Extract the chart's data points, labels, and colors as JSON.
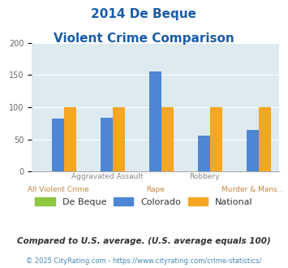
{
  "title_line1": "2014 De Beque",
  "title_line2": "Violent Crime Comparison",
  "categories_top": [
    "",
    "Aggravated Assault",
    "",
    "Robbery",
    ""
  ],
  "categories_bot": [
    "All Violent Crime",
    "",
    "Rape",
    "",
    "Murder & Mans..."
  ],
  "de_beque": [
    0,
    0,
    0,
    0,
    0
  ],
  "colorado": [
    82,
    84,
    155,
    56,
    65
  ],
  "national": [
    100,
    100,
    100,
    100,
    100
  ],
  "color_de_beque": "#8dc63f",
  "color_colorado": "#4e86d4",
  "color_national": "#f5a623",
  "ylim": [
    0,
    200
  ],
  "yticks": [
    0,
    50,
    100,
    150,
    200
  ],
  "background_color": "#ddeaf0",
  "title_color": "#1a5ca8",
  "xlabel_top_color": "#888888",
  "xlabel_bot_color": "#c08840",
  "legend_labels": [
    "De Beque",
    "Colorado",
    "National"
  ],
  "legend_text_color": "#333333",
  "footnote": "Compared to U.S. average. (U.S. average equals 100)",
  "footnote2": "© 2025 CityRating.com - https://www.cityrating.com/crime-statistics/",
  "footnote_color": "#333333",
  "footnote2_color": "#4488bb",
  "bar_width": 0.25
}
